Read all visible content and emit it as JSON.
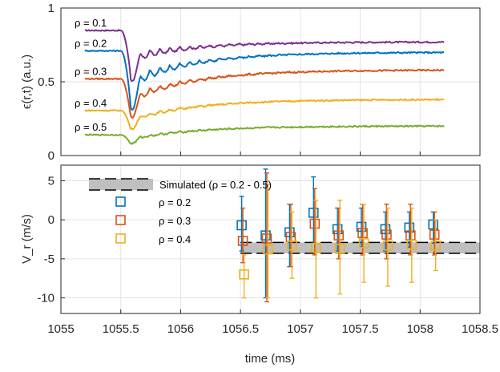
{
  "chart_data": [
    {
      "type": "line",
      "panel": "top",
      "ylabel": "ϵ(r,t) (a.u.)",
      "xlim": [
        1055,
        1058.5
      ],
      "ylim": [
        0,
        1
      ],
      "yticks": [
        {
          "value": 0,
          "label": "0"
        },
        {
          "value": 0.5,
          "label": "0.5"
        },
        {
          "value": 1,
          "label": "1"
        }
      ],
      "grid": true,
      "series": [
        {
          "name": "ρ = 0.1",
          "label": "ρ = 0.1",
          "color": "#7E2F8E",
          "base": 0.848,
          "depth": 0.29,
          "end": 0.77
        },
        {
          "name": "ρ = 0.2",
          "label": "ρ = 0.2",
          "color": "#0072BD",
          "base": 0.71,
          "depth": 0.35,
          "end": 0.7
        },
        {
          "name": "ρ = 0.3",
          "label": "ρ = 0.3",
          "color": "#D95319",
          "base": 0.52,
          "depth": 0.24,
          "end": 0.58
        },
        {
          "name": "ρ = 0.4",
          "label": "ρ = 0.4",
          "color": "#EDB120",
          "base": 0.305,
          "depth": 0.12,
          "end": 0.38
        },
        {
          "name": "ρ = 0.5",
          "label": "ρ = 0.5",
          "color": "#77AC30",
          "base": 0.14,
          "depth": 0.06,
          "end": 0.2
        }
      ],
      "x_start": 1055.2,
      "x_end": 1058.2,
      "drop_at": 1055.5,
      "min_at": 1055.58
    },
    {
      "type": "scatter",
      "panel": "bottom",
      "xlabel": "time (ms)",
      "ylabel": "V_r (m/s)",
      "xlim": [
        1055,
        1058.5
      ],
      "ylim": [
        -12,
        7
      ],
      "xticks": [
        {
          "value": 1055,
          "label": "1055"
        },
        {
          "value": 1055.5,
          "label": "1055.5"
        },
        {
          "value": 1056,
          "label": "1056"
        },
        {
          "value": 1056.5,
          "label": "1056.5"
        },
        {
          "value": 1057,
          "label": "1057"
        },
        {
          "value": 1057.5,
          "label": "1057.5"
        },
        {
          "value": 1058,
          "label": "1058"
        },
        {
          "value": 1058.5,
          "label": "1058.5"
        }
      ],
      "yticks": [
        {
          "value": -10,
          "label": "-10"
        },
        {
          "value": -5,
          "label": "-5"
        },
        {
          "value": 0,
          "label": "0"
        },
        {
          "value": 5,
          "label": "5"
        }
      ],
      "grid": true,
      "legend_position": "top-left",
      "simulated": {
        "name": "Simulated (ρ = 0.2 - 0.5)",
        "x_from": 1056.5,
        "x_to": 1058.5,
        "y_low": -4.3,
        "y_high": -2.9,
        "line_y": -3.6,
        "fill": "#bfbfbf"
      },
      "series": [
        {
          "name": "ρ = 0.2",
          "color": "#0072BD",
          "x": [
            1056.52,
            1056.72,
            1056.92,
            1057.12,
            1057.32,
            1057.52,
            1057.72,
            1057.92,
            1058.12
          ],
          "y": [
            -0.7,
            -2.0,
            -1.6,
            0.9,
            -1.2,
            -0.9,
            -1.2,
            -1.0,
            -0.6
          ],
          "err_low": [
            -4.0,
            -10.0,
            -6.0,
            -3.0,
            -4.0,
            -3.5,
            -4.0,
            -3.5,
            -3.0
          ],
          "err_high": [
            3.0,
            6.5,
            2.0,
            5.5,
            1.5,
            1.5,
            1.0,
            1.0,
            1.0
          ]
        },
        {
          "name": "ρ = 0.3",
          "color": "#D95319",
          "x": [
            1056.52,
            1056.72,
            1056.92,
            1057.12,
            1057.32,
            1057.52,
            1057.72,
            1057.92,
            1058.12
          ],
          "y": [
            -2.7,
            -2.4,
            -2.2,
            -0.5,
            -2.0,
            -1.7,
            -1.9,
            -2.0,
            -1.9
          ],
          "err_low": [
            -5.5,
            -10.5,
            -6.0,
            -4.5,
            -5.0,
            -4.5,
            -5.0,
            -4.5,
            -4.5
          ],
          "err_high": [
            1.5,
            6.0,
            2.0,
            4.0,
            1.5,
            2.0,
            2.0,
            2.0,
            1.0
          ]
        },
        {
          "name": "ρ = 0.4",
          "color": "#EDB120",
          "x": [
            1056.52,
            1056.72,
            1056.92,
            1057.12,
            1057.32,
            1057.52,
            1057.72,
            1057.92,
            1058.12
          ],
          "y": [
            -7.0,
            -3.8,
            -3.3,
            -3.6,
            -3.7,
            -3.0,
            -3.3,
            -3.2,
            -3.3
          ],
          "err_low": [
            -10.0,
            -10.0,
            -7.5,
            -10.0,
            -9.5,
            -8.0,
            -8.5,
            -8.0,
            -6.5
          ],
          "err_high": [
            -4.5,
            4.5,
            1.0,
            2.5,
            2.5,
            2.0,
            1.5,
            1.5,
            0.0
          ]
        }
      ]
    }
  ]
}
